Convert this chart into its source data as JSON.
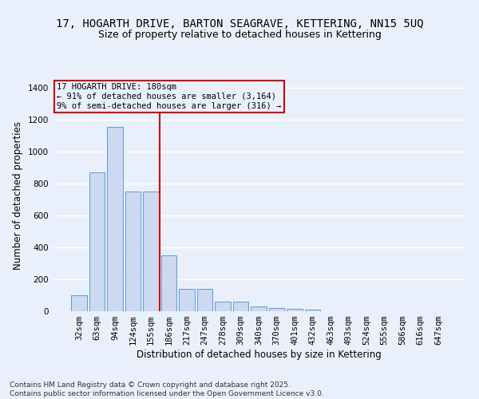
{
  "title_line1": "17, HOGARTH DRIVE, BARTON SEAGRAVE, KETTERING, NN15 5UQ",
  "title_line2": "Size of property relative to detached houses in Kettering",
  "xlabel": "Distribution of detached houses by size in Kettering",
  "ylabel": "Number of detached properties",
  "categories": [
    "32sqm",
    "63sqm",
    "94sqm",
    "124sqm",
    "155sqm",
    "186sqm",
    "217sqm",
    "247sqm",
    "278sqm",
    "309sqm",
    "340sqm",
    "370sqm",
    "401sqm",
    "432sqm",
    "463sqm",
    "493sqm",
    "524sqm",
    "555sqm",
    "586sqm",
    "616sqm",
    "647sqm"
  ],
  "values": [
    100,
    870,
    1155,
    750,
    750,
    350,
    140,
    140,
    60,
    60,
    30,
    20,
    15,
    8,
    0,
    0,
    0,
    0,
    0,
    0,
    0
  ],
  "bar_color": "#ccd9f0",
  "bar_edge_color": "#5b9bd5",
  "reference_line_index": 5,
  "reference_line_label": "17 HOGARTH DRIVE: 180sqm",
  "annotation_line2": "← 91% of detached houses are smaller (3,164)",
  "annotation_line3": "9% of semi-detached houses are larger (316) →",
  "annotation_box_color": "#cc0000",
  "ylim": [
    0,
    1450
  ],
  "yticks": [
    0,
    200,
    400,
    600,
    800,
    1000,
    1200,
    1400
  ],
  "background_color": "#eaf0fb",
  "grid_color": "#ffffff",
  "footer_line1": "Contains HM Land Registry data © Crown copyright and database right 2025.",
  "footer_line2": "Contains public sector information licensed under the Open Government Licence v3.0.",
  "title_fontsize": 10,
  "subtitle_fontsize": 9,
  "axis_label_fontsize": 8.5,
  "tick_fontsize": 7.5,
  "annotation_fontsize": 7.5,
  "footer_fontsize": 6.5
}
